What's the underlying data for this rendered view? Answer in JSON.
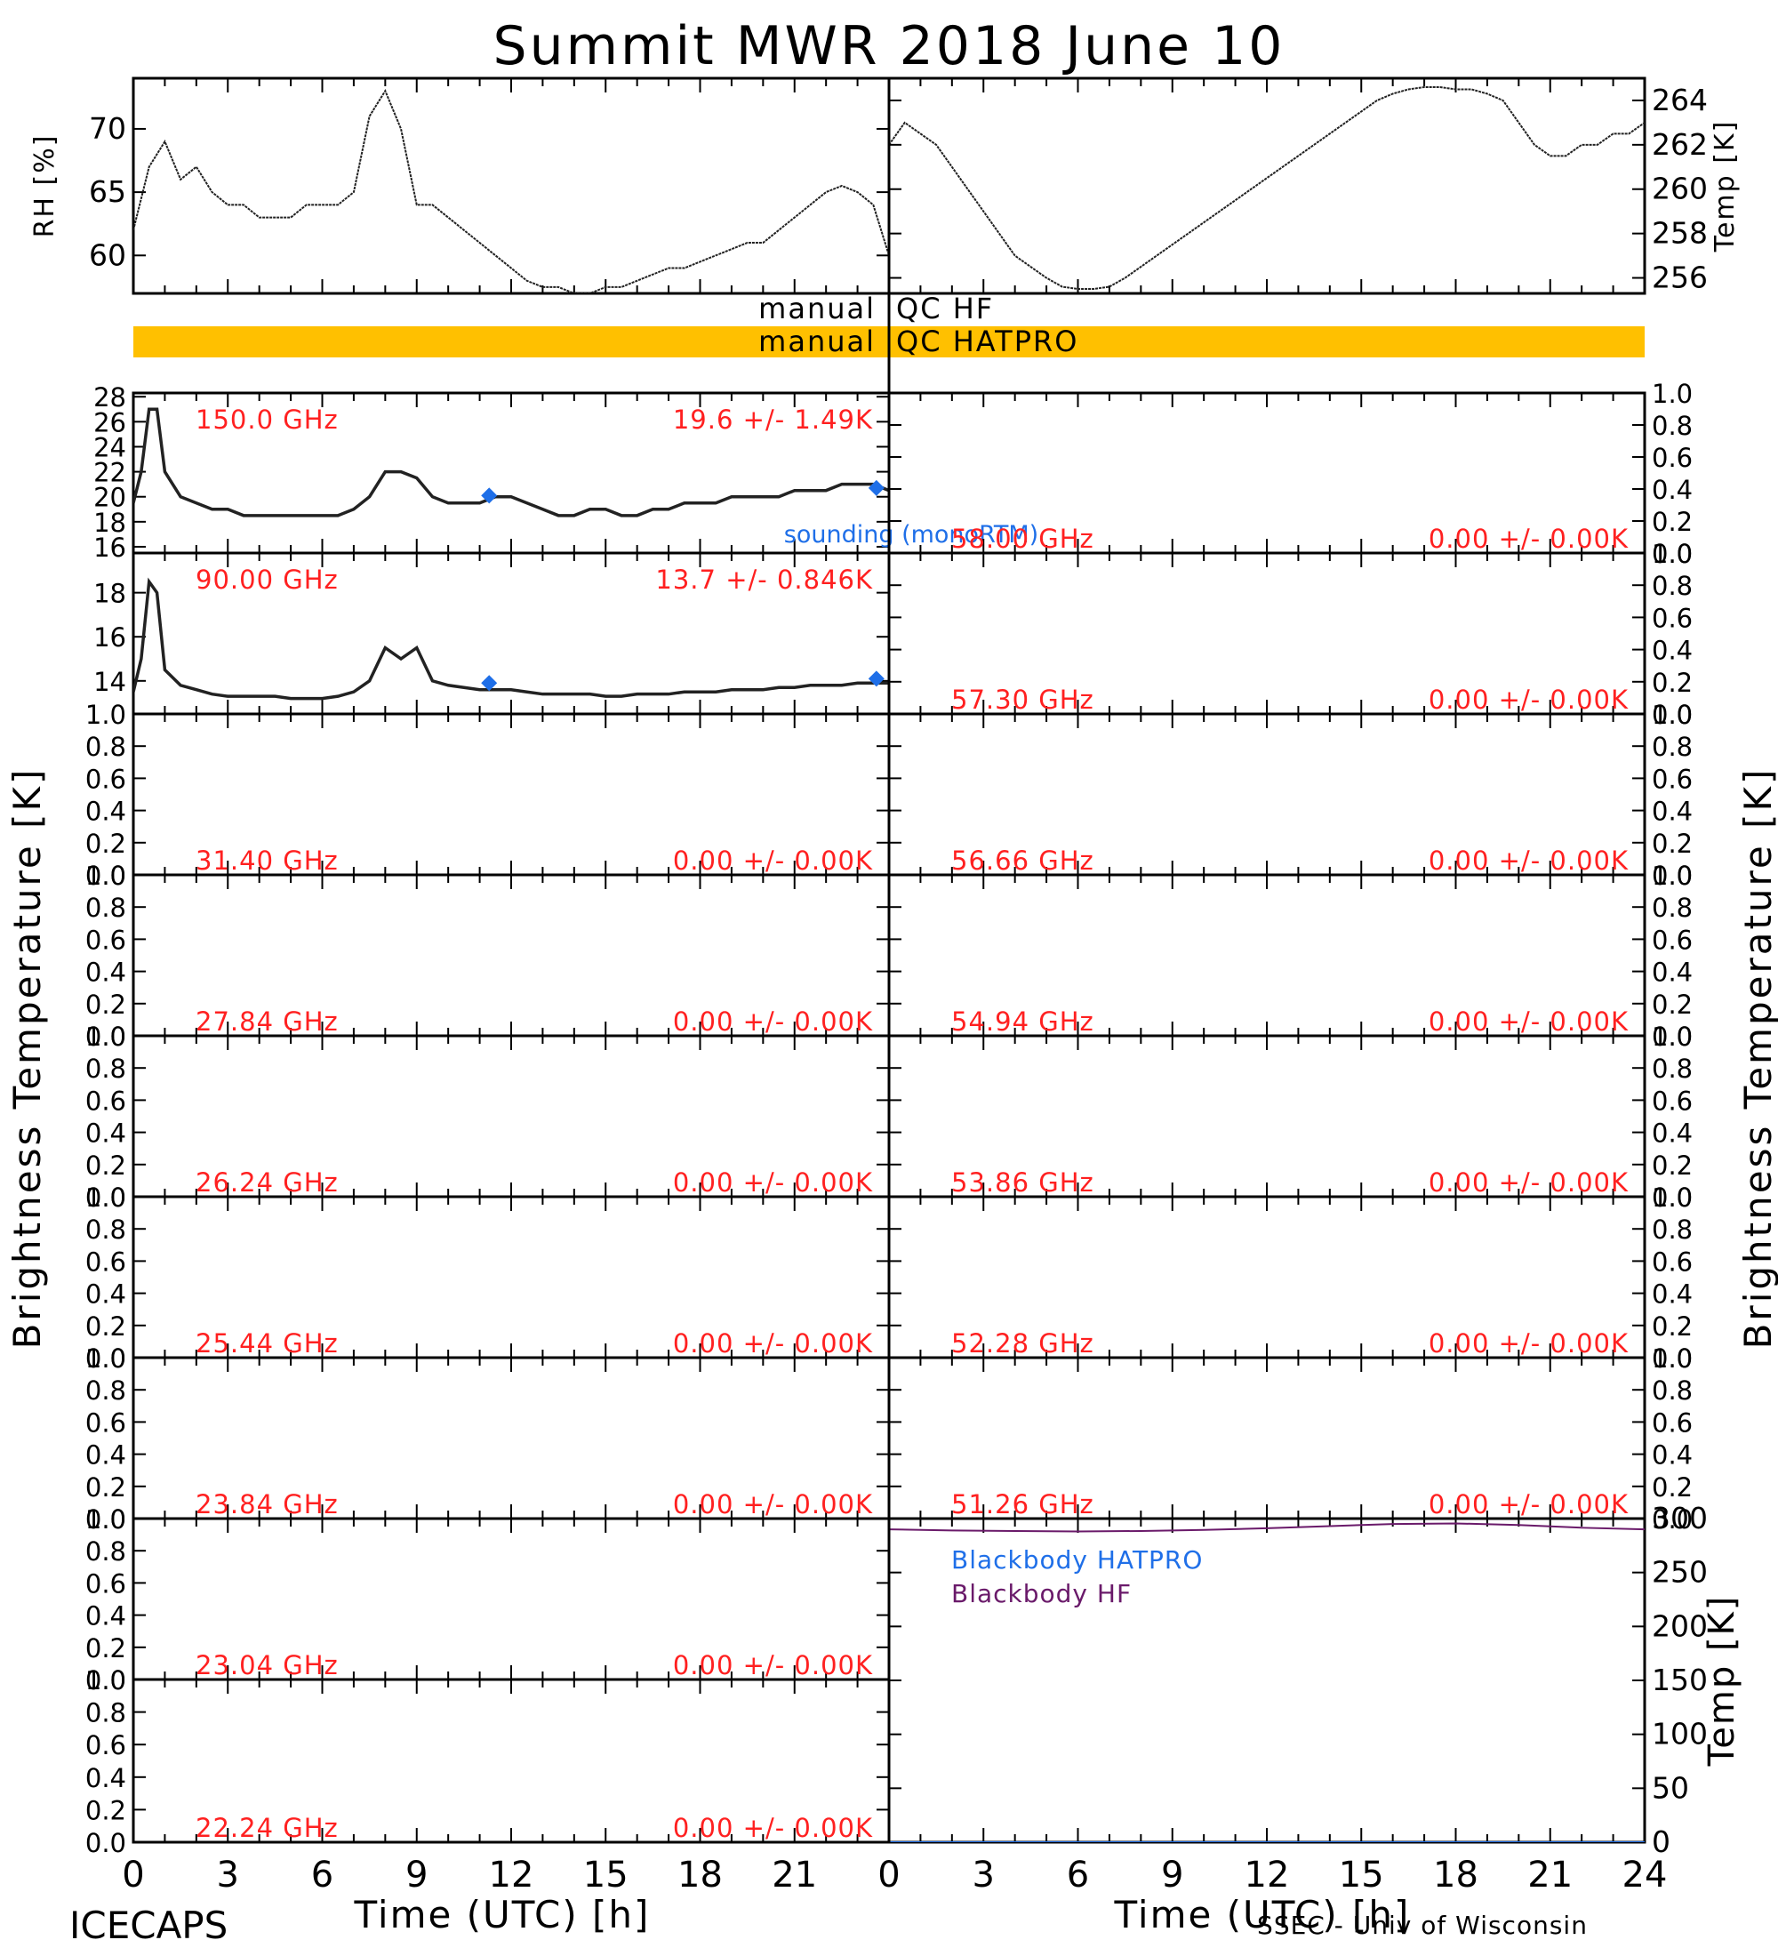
{
  "title": "Summit MWR 2018 June 10",
  "footer_left": "ICECAPS",
  "footer_right": "SSEC - Univ of Wisconsin",
  "xlabel": "Time (UTC) [h]",
  "left_ylabel": "Brightness Temperature [K]",
  "right_ylabel": "Brightness Temperature [K]",
  "qc": {
    "hf": {
      "left": "manual",
      "right": "QC HF"
    },
    "hatpro": {
      "left": "manual",
      "right": "QC HATPRO",
      "color": "#ffc000"
    }
  },
  "colors": {
    "label_red": "#ff2020",
    "sounding_blue": "#1f6fe8",
    "bb_hatpro": "#1f6fe8",
    "bb_hf": "#6a1a6a"
  },
  "chart_data": [
    {
      "id": "rh",
      "type": "line",
      "ylabel": "RH [%]",
      "xlim": [
        0,
        24
      ],
      "ylim": [
        57,
        74
      ],
      "yticks": [
        60,
        65,
        70
      ],
      "x": [
        0,
        0.5,
        1,
        1.5,
        2,
        2.5,
        3,
        3.5,
        4,
        4.5,
        5,
        5.5,
        6,
        6.5,
        7,
        7.5,
        8,
        8.5,
        9,
        9.5,
        10,
        10.5,
        11,
        11.5,
        12,
        12.5,
        13,
        13.5,
        14,
        14.5,
        15,
        15.5,
        16,
        16.5,
        17,
        17.5,
        18,
        18.5,
        19,
        19.5,
        20,
        20.5,
        21,
        21.5,
        22,
        22.5,
        23,
        23.5,
        24
      ],
      "y": [
        62,
        67,
        69,
        66,
        67,
        65,
        64,
        64,
        63,
        63,
        63,
        64,
        64,
        64,
        65,
        71,
        73,
        70,
        64,
        64,
        63,
        62,
        61,
        60,
        59,
        58,
        57.5,
        57.5,
        57,
        57,
        57.5,
        57.5,
        58,
        58.5,
        59,
        59,
        59.5,
        60,
        60.5,
        61,
        61,
        62,
        63,
        64,
        65,
        65.5,
        65,
        64,
        60
      ]
    },
    {
      "id": "temp",
      "type": "line",
      "ylabel": "Temp [K]",
      "xlim": [
        0,
        24
      ],
      "ylim": [
        255.3,
        265
      ],
      "yticks": [
        256,
        258,
        260,
        262,
        264
      ],
      "x": [
        0,
        0.5,
        1,
        1.5,
        2,
        2.5,
        3,
        3.5,
        4,
        4.5,
        5,
        5.5,
        6,
        6.5,
        7,
        7.5,
        8,
        8.5,
        9,
        9.5,
        10,
        10.5,
        11,
        11.5,
        12,
        12.5,
        13,
        13.5,
        14,
        14.5,
        15,
        15.5,
        16,
        16.5,
        17,
        17.5,
        18,
        18.5,
        19,
        19.5,
        20,
        20.5,
        21,
        21.5,
        22,
        22.5,
        23,
        23.5,
        24
      ],
      "y": [
        262,
        263,
        262.5,
        262,
        261,
        260,
        259,
        258,
        257,
        256.5,
        256,
        255.6,
        255.5,
        255.5,
        255.6,
        256,
        256.5,
        257,
        257.5,
        258,
        258.5,
        259,
        259.5,
        260,
        260.5,
        261,
        261.5,
        262,
        262.5,
        263,
        263.5,
        264,
        264.3,
        264.5,
        264.6,
        264.6,
        264.5,
        264.5,
        264.3,
        264,
        263,
        262,
        261.5,
        261.5,
        262,
        262,
        262.5,
        262.5,
        263
      ]
    },
    {
      "id": "ch150",
      "type": "line",
      "freq": "150.0 GHz",
      "stat": "19.6 +/-  1.49K",
      "xlim": [
        0,
        24
      ],
      "ylim": [
        15.5,
        28.3
      ],
      "yticks": [
        16,
        18,
        20,
        22,
        24,
        26,
        28
      ],
      "x": [
        0,
        0.25,
        0.5,
        0.75,
        1,
        1.5,
        2,
        2.5,
        3,
        3.5,
        4,
        4.5,
        5,
        5.5,
        6,
        6.5,
        7,
        7.5,
        8,
        8.5,
        9,
        9.5,
        10,
        10.5,
        11,
        11.5,
        12,
        12.5,
        13,
        13.5,
        14,
        14.5,
        15,
        15.5,
        16,
        16.5,
        17,
        17.5,
        18,
        18.5,
        19,
        19.5,
        20,
        20.5,
        21,
        21.5,
        22,
        22.5,
        23,
        23.5,
        24
      ],
      "y": [
        19.5,
        22,
        27,
        27,
        22,
        20,
        19.5,
        19,
        19,
        18.5,
        18.5,
        18.5,
        18.5,
        18.5,
        18.5,
        18.5,
        19,
        20,
        22,
        22,
        21.5,
        20,
        19.5,
        19.5,
        19.5,
        20,
        20,
        19.5,
        19,
        18.5,
        18.5,
        19,
        19,
        18.5,
        18.5,
        19,
        19,
        19.5,
        19.5,
        19.5,
        20,
        20,
        20,
        20,
        20.5,
        20.5,
        20.5,
        21,
        21,
        21,
        20.5
      ],
      "sounding": {
        "x": [
          11.3,
          23.6
        ],
        "y": [
          20.1,
          20.7
        ]
      },
      "sounding_label": "sounding (monoRTM)"
    },
    {
      "id": "ch90",
      "type": "line",
      "freq": "90.00 GHz",
      "stat": "13.7 +/- 0.846K",
      "xlim": [
        0,
        24
      ],
      "ylim": [
        12.5,
        19.8
      ],
      "yticks": [
        14,
        16,
        18
      ],
      "x": [
        0,
        0.25,
        0.5,
        0.75,
        1,
        1.5,
        2,
        2.5,
        3,
        3.5,
        4,
        4.5,
        5,
        5.5,
        6,
        6.5,
        7,
        7.5,
        8,
        8.5,
        9,
        9.5,
        10,
        10.5,
        11,
        11.5,
        12,
        12.5,
        13,
        13.5,
        14,
        14.5,
        15,
        15.5,
        16,
        16.5,
        17,
        17.5,
        18,
        18.5,
        19,
        19.5,
        20,
        20.5,
        21,
        21.5,
        22,
        22.5,
        23,
        23.5,
        24
      ],
      "y": [
        13.5,
        15,
        18.5,
        18,
        14.5,
        13.8,
        13.6,
        13.4,
        13.3,
        13.3,
        13.3,
        13.3,
        13.2,
        13.2,
        13.2,
        13.3,
        13.5,
        14,
        15.5,
        15,
        15.5,
        14,
        13.8,
        13.7,
        13.6,
        13.6,
        13.6,
        13.5,
        13.4,
        13.4,
        13.4,
        13.4,
        13.3,
        13.3,
        13.4,
        13.4,
        13.4,
        13.5,
        13.5,
        13.5,
        13.6,
        13.6,
        13.6,
        13.7,
        13.7,
        13.8,
        13.8,
        13.8,
        13.9,
        13.9,
        13.9
      ],
      "sounding": {
        "x": [
          11.3,
          23.6
        ],
        "y": [
          13.9,
          14.1
        ]
      }
    },
    {
      "id": "ch58",
      "type": "line",
      "freq": "58.00 GHz",
      "stat": "0.00 +/-  0.00K",
      "xlim": [
        0,
        24
      ],
      "ylim": [
        0,
        1
      ],
      "yticks": [
        0.0,
        0.2,
        0.4,
        0.6,
        0.8,
        1.0
      ],
      "x": [],
      "y": []
    },
    {
      "id": "ch5730",
      "type": "line",
      "freq": "57.30 GHz",
      "stat": "0.00 +/-  0.00K",
      "xlim": [
        0,
        24
      ],
      "ylim": [
        0,
        1
      ],
      "yticks": [
        0.0,
        0.2,
        0.4,
        0.6,
        0.8,
        1.0
      ],
      "x": [],
      "y": []
    },
    {
      "id": "ch3140",
      "type": "line",
      "freq": "31.40 GHz",
      "stat": "0.00 +/-  0.00K",
      "xlim": [
        0,
        24
      ],
      "ylim": [
        0,
        1
      ],
      "yticks": [
        0.0,
        0.2,
        0.4,
        0.6,
        0.8,
        1.0
      ],
      "x": [],
      "y": []
    },
    {
      "id": "ch5666",
      "type": "line",
      "freq": "56.66 GHz",
      "stat": "0.00 +/-  0.00K",
      "xlim": [
        0,
        24
      ],
      "ylim": [
        0,
        1
      ],
      "yticks": [
        0.0,
        0.2,
        0.4,
        0.6,
        0.8,
        1.0
      ],
      "x": [],
      "y": []
    },
    {
      "id": "ch2784",
      "type": "line",
      "freq": "27.84 GHz",
      "stat": "0.00 +/-  0.00K",
      "xlim": [
        0,
        24
      ],
      "ylim": [
        0,
        1
      ],
      "yticks": [
        0.0,
        0.2,
        0.4,
        0.6,
        0.8,
        1.0
      ],
      "x": [],
      "y": []
    },
    {
      "id": "ch5494",
      "type": "line",
      "freq": "54.94 GHz",
      "stat": "0.00 +/-  0.00K",
      "xlim": [
        0,
        24
      ],
      "ylim": [
        0,
        1
      ],
      "yticks": [
        0.0,
        0.2,
        0.4,
        0.6,
        0.8,
        1.0
      ],
      "x": [],
      "y": []
    },
    {
      "id": "ch2624",
      "type": "line",
      "freq": "26.24 GHz",
      "stat": "0.00 +/-  0.00K",
      "xlim": [
        0,
        24
      ],
      "ylim": [
        0,
        1
      ],
      "yticks": [
        0.0,
        0.2,
        0.4,
        0.6,
        0.8,
        1.0
      ],
      "x": [],
      "y": []
    },
    {
      "id": "ch5386",
      "type": "line",
      "freq": "53.86 GHz",
      "stat": "0.00 +/-  0.00K",
      "xlim": [
        0,
        24
      ],
      "ylim": [
        0,
        1
      ],
      "yticks": [
        0.0,
        0.2,
        0.4,
        0.6,
        0.8,
        1.0
      ],
      "x": [],
      "y": []
    },
    {
      "id": "ch2544",
      "type": "line",
      "freq": "25.44 GHz",
      "stat": "0.00 +/-  0.00K",
      "xlim": [
        0,
        24
      ],
      "ylim": [
        0,
        1
      ],
      "yticks": [
        0.0,
        0.2,
        0.4,
        0.6,
        0.8,
        1.0
      ],
      "x": [],
      "y": []
    },
    {
      "id": "ch5228",
      "type": "line",
      "freq": "52.28 GHz",
      "stat": "0.00 +/-  0.00K",
      "xlim": [
        0,
        24
      ],
      "ylim": [
        0,
        1
      ],
      "yticks": [
        0.0,
        0.2,
        0.4,
        0.6,
        0.8,
        1.0
      ],
      "x": [],
      "y": []
    },
    {
      "id": "ch2384",
      "type": "line",
      "freq": "23.84 GHz",
      "stat": "0.00 +/-  0.00K",
      "xlim": [
        0,
        24
      ],
      "ylim": [
        0,
        1
      ],
      "yticks": [
        0.0,
        0.2,
        0.4,
        0.6,
        0.8,
        1.0
      ],
      "x": [],
      "y": []
    },
    {
      "id": "ch5126",
      "type": "line",
      "freq": "51.26 GHz",
      "stat": "0.00 +/-  0.00K",
      "xlim": [
        0,
        24
      ],
      "ylim": [
        0,
        1
      ],
      "yticks": [
        0.0,
        0.2,
        0.4,
        0.6,
        0.8,
        1.0
      ],
      "x": [],
      "y": []
    },
    {
      "id": "ch2304",
      "type": "line",
      "freq": "23.04 GHz",
      "stat": "0.00 +/-  0.00K",
      "xlim": [
        0,
        24
      ],
      "ylim": [
        0,
        1
      ],
      "yticks": [
        0.0,
        0.2,
        0.4,
        0.6,
        0.8,
        1.0
      ],
      "x": [],
      "y": []
    },
    {
      "id": "ch2224",
      "type": "line",
      "freq": "22.24 GHz",
      "stat": "0.00 +/-  0.00K",
      "xlim": [
        0,
        24
      ],
      "ylim": [
        0,
        1
      ],
      "yticks": [
        0.0,
        0.2,
        0.4,
        0.6,
        0.8,
        1.0
      ],
      "x": [],
      "y": []
    },
    {
      "id": "blackbody",
      "type": "line",
      "ylabel": "Temp [K]",
      "xlim": [
        0,
        24
      ],
      "ylim": [
        0,
        300
      ],
      "yticks": [
        0,
        50,
        100,
        150,
        200,
        250,
        300
      ],
      "series": [
        {
          "name": "Blackbody HATPRO",
          "x": [
            0,
            24
          ],
          "y": [
            0,
            0
          ]
        },
        {
          "name": "Blackbody HF",
          "x": [
            0,
            2,
            4,
            6,
            8,
            10,
            12,
            14,
            16,
            18,
            20,
            22,
            24
          ],
          "y": [
            290,
            289,
            288.5,
            288,
            288.5,
            289.5,
            291,
            293,
            295,
            295.5,
            294,
            291.5,
            290
          ]
        }
      ]
    }
  ]
}
